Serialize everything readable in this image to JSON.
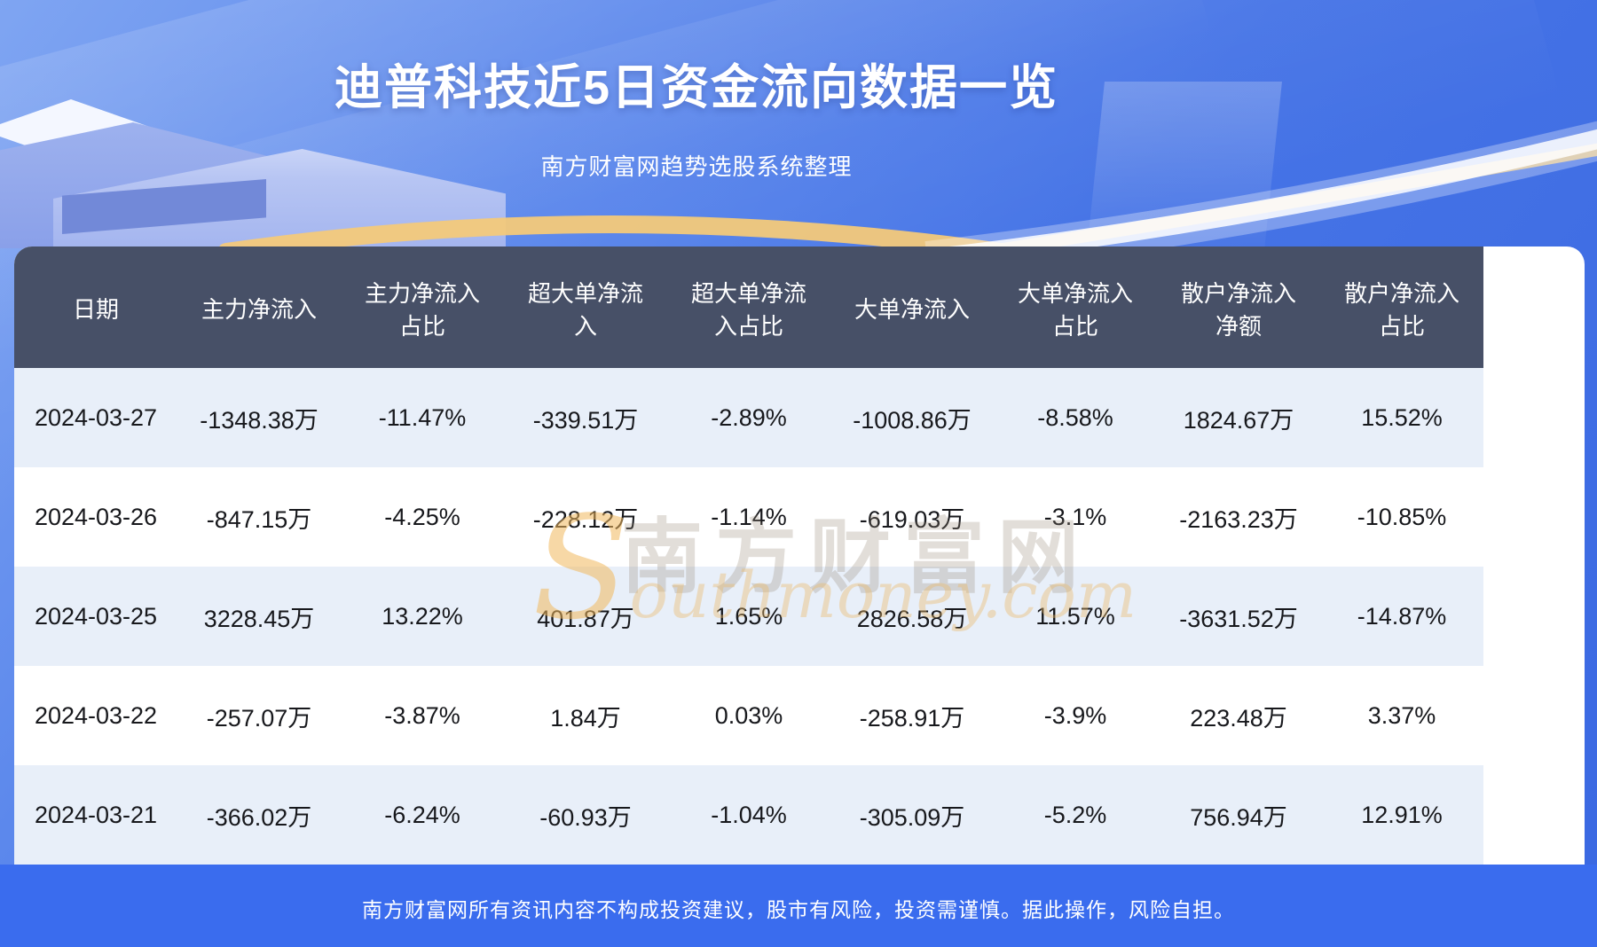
{
  "page": {
    "title": "迪普科技近5日资金流向数据一览",
    "subtitle": "南方财富网趋势选股系统整理",
    "disclaimer": "南方财富网所有资讯内容不构成投资建议，股市有风险，投资需谨慎。据此操作，风险自担。"
  },
  "watermark": {
    "cn": "南方财富网",
    "en": "Southmoney.com"
  },
  "colors": {
    "background_top": "#7fa5f2",
    "background_bottom": "#3a68e2",
    "header_bg": "#475067",
    "row_light_bg": "#e8eff9",
    "row_white_bg": "#ffffff",
    "footer_band_bg": "#3a6cee",
    "gold_arc": "#f3c97a",
    "text_dark": "#17181c",
    "text_white": "#ffffff"
  },
  "chart_data": {
    "type": "table",
    "title": "迪普科技近5日资金流向数据一览",
    "columns": [
      "日期",
      "主力净流入",
      "主力净流入\n占比",
      "超大单净流\n入",
      "超大单净流\n入占比",
      "大单净流入",
      "大单净流入\n占比",
      "散户净流入\n净额",
      "散户净流入\n占比"
    ],
    "rows": [
      [
        "2024-03-27",
        "-1348.38万",
        "-11.47%",
        "-339.51万",
        "-2.89%",
        "-1008.86万",
        "-8.58%",
        "1824.67万",
        "15.52%"
      ],
      [
        "2024-03-26",
        "-847.15万",
        "-4.25%",
        "-228.12万",
        "-1.14%",
        "-619.03万",
        "-3.1%",
        "-2163.23万",
        "-10.85%"
      ],
      [
        "2024-03-25",
        "3228.45万",
        "13.22%",
        "401.87万",
        "1.65%",
        "2826.58万",
        "11.57%",
        "-3631.52万",
        "-14.87%"
      ],
      [
        "2024-03-22",
        "-257.07万",
        "-3.87%",
        "1.84万",
        "0.03%",
        "-258.91万",
        "-3.9%",
        "223.48万",
        "3.37%"
      ],
      [
        "2024-03-21",
        "-366.02万",
        "-6.24%",
        "-60.93万",
        "-1.04%",
        "-305.09万",
        "-5.2%",
        "756.94万",
        "12.91%"
      ]
    ]
  }
}
